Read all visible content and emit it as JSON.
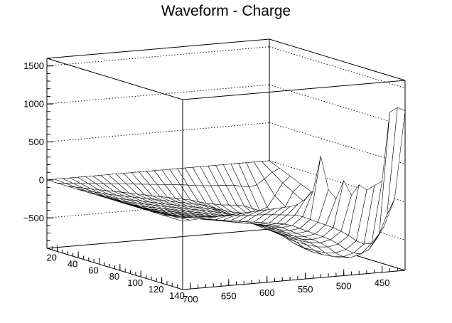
{
  "chart_data": {
    "type": "surface",
    "title": "Waveform - Charge",
    "xlabel": "",
    "ylabel": "",
    "zlabel": "",
    "grid": true,
    "wireframe": true,
    "mesh_color": "#000000",
    "background": "#ffffff",
    "x_axis": {
      "range": [
        10,
        140
      ],
      "ticks": [
        20,
        40,
        60,
        80,
        100,
        120,
        140
      ]
    },
    "y_axis": {
      "range": [
        420,
        710
      ],
      "reversed": true,
      "ticks": [
        700,
        650,
        600,
        550,
        500,
        450
      ]
    },
    "z_axis": {
      "range": [
        -900,
        1600
      ],
      "ticks": [
        1500,
        1000,
        500,
        0,
        -500
      ],
      "tick_labels": [
        "1500",
        "1000",
        "500",
        "0",
        "−500"
      ]
    },
    "x_grid": [
      10,
      20,
      30,
      40,
      50,
      60,
      70,
      80,
      90,
      100,
      110,
      120,
      130,
      140
    ],
    "y_grid": [
      710,
      700,
      690,
      680,
      670,
      660,
      650,
      640,
      630,
      620,
      610,
      600,
      590,
      580,
      570,
      560,
      550,
      540,
      530,
      520,
      510,
      500,
      490,
      480,
      470,
      460,
      450,
      440,
      430,
      420
    ],
    "z": [
      [
        0,
        0,
        0,
        0,
        0,
        0,
        0,
        0,
        0,
        0,
        0,
        0,
        0,
        0,
        0,
        0,
        0,
        0,
        0,
        0,
        0,
        0,
        0,
        0,
        0,
        0,
        0,
        0,
        0,
        0
      ],
      [
        0,
        -10,
        -20,
        -30,
        -40,
        -50,
        -60,
        -70,
        -80,
        -90,
        -100,
        -110,
        -120,
        -130,
        -140,
        -150,
        -160,
        -175,
        -190,
        -200,
        -210,
        -215,
        -220,
        -230,
        -250,
        -270,
        -250,
        -180,
        -100,
        -60
      ],
      [
        0,
        -20,
        -40,
        -60,
        -80,
        -100,
        -120,
        -140,
        -160,
        -180,
        -200,
        -220,
        -240,
        -260,
        -280,
        -300,
        -320,
        -350,
        -380,
        -400,
        -420,
        -430,
        -440,
        -460,
        -500,
        -540,
        -500,
        -360,
        -200,
        -120
      ],
      [
        0,
        -25,
        -50,
        -75,
        -100,
        -120,
        -140,
        -160,
        -180,
        -200,
        -220,
        -240,
        -260,
        -280,
        -300,
        -320,
        -340,
        -370,
        -410,
        -440,
        -470,
        -490,
        -510,
        -540,
        -590,
        -640,
        -610,
        -460,
        -280,
        -180
      ],
      [
        0,
        -30,
        -60,
        -90,
        -115,
        -135,
        -155,
        -175,
        -195,
        -215,
        -235,
        -255,
        -275,
        -295,
        -315,
        -335,
        -355,
        -385,
        -430,
        -470,
        -510,
        -540,
        -570,
        -610,
        -670,
        -730,
        -710,
        -560,
        -360,
        -240
      ],
      [
        0,
        -32,
        -64,
        -96,
        -122,
        -142,
        -162,
        -182,
        -202,
        -222,
        -242,
        -262,
        -282,
        -302,
        -322,
        -342,
        -362,
        -392,
        -440,
        -490,
        -540,
        -580,
        -620,
        -670,
        -740,
        -800,
        -790,
        -660,
        -460,
        -320
      ],
      [
        0,
        -34,
        -68,
        -100,
        -128,
        -148,
        -168,
        -188,
        -208,
        -228,
        -248,
        -268,
        -288,
        -308,
        -328,
        -348,
        -368,
        -398,
        -448,
        -500,
        -555,
        -600,
        -650,
        -710,
        -790,
        -850,
        -850,
        -740,
        -560,
        -400
      ],
      [
        0,
        -34,
        -68,
        -100,
        -128,
        -148,
        -168,
        -188,
        -208,
        -228,
        -248,
        -268,
        -288,
        -308,
        -328,
        -348,
        -368,
        -398,
        -448,
        -500,
        -555,
        -605,
        -660,
        -725,
        -810,
        -870,
        -880,
        -790,
        -620,
        -460
      ],
      [
        0,
        -33,
        -66,
        -98,
        -124,
        -144,
        -164,
        -184,
        -204,
        -224,
        -244,
        -264,
        -284,
        -304,
        -324,
        -344,
        -364,
        -394,
        -444,
        -496,
        -550,
        -600,
        -655,
        -720,
        -805,
        -865,
        -880,
        -800,
        -640,
        -480
      ],
      [
        0,
        -31,
        -62,
        -92,
        -118,
        -138,
        -158,
        -178,
        -198,
        -218,
        -238,
        -258,
        -278,
        -298,
        -318,
        -338,
        -358,
        -388,
        -436,
        -486,
        -538,
        -588,
        -640,
        -705,
        -790,
        -850,
        -870,
        -800,
        -640,
        -480
      ],
      [
        0,
        -28,
        -56,
        -84,
        -110,
        -128,
        -146,
        -164,
        -182,
        -200,
        -218,
        -236,
        -254,
        -272,
        -290,
        -308,
        -326,
        -356,
        -404,
        -452,
        -502,
        -550,
        -600,
        -665,
        -750,
        -810,
        -830,
        -770,
        -620,
        -460
      ],
      [
        0,
        -20,
        -40,
        -60,
        -80,
        -95,
        -110,
        -125,
        -140,
        -155,
        -170,
        -185,
        -200,
        -215,
        -230,
        -245,
        -260,
        -290,
        -335,
        -380,
        -425,
        -470,
        -520,
        -585,
        -665,
        -720,
        -740,
        -690,
        -560,
        -400
      ],
      [
        0,
        -5,
        -10,
        -15,
        -20,
        -25,
        -30,
        -35,
        -40,
        -45,
        -50,
        -55,
        -60,
        -70,
        -80,
        -90,
        -100,
        -130,
        -175,
        -220,
        -265,
        -310,
        -365,
        -430,
        -510,
        -560,
        -560,
        -440,
        -200,
        0
      ],
      [
        0,
        5,
        10,
        15,
        20,
        25,
        30,
        35,
        40,
        45,
        50,
        55,
        60,
        65,
        70,
        90,
        150,
        250,
        700,
        250,
        120,
        350,
        150,
        280,
        200,
        250,
        300,
        1200,
        1250,
        1200
      ]
    ]
  }
}
